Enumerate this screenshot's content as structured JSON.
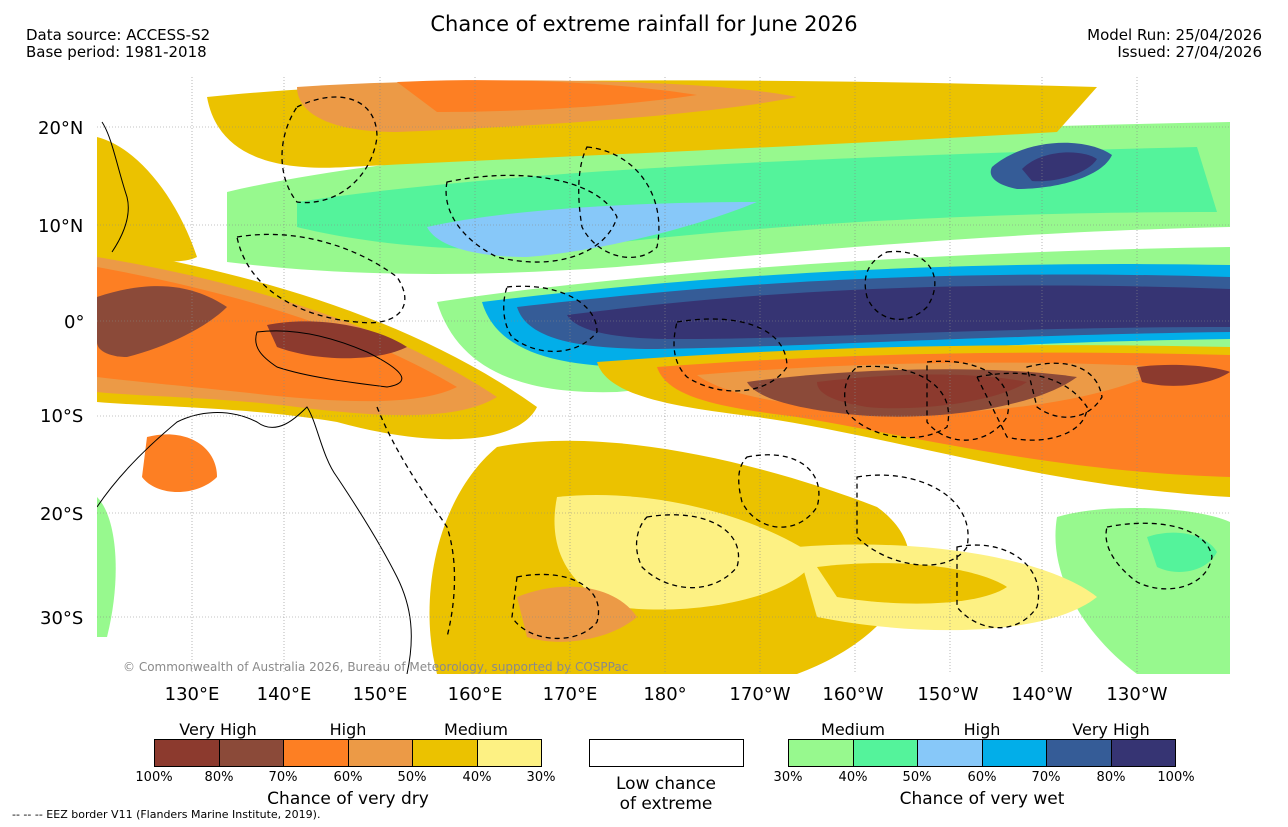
{
  "title": "Chance of extreme rainfall for June 2026",
  "header_left": {
    "data_source": "Data source: ACCESS-S2",
    "base_period": "Base period: 1981-2018"
  },
  "header_right": {
    "model_run": "Model Run: 25/04/2026",
    "issued": "Issued: 27/04/2026"
  },
  "map": {
    "lat_labels": [
      "20°N",
      "10°N",
      "0°",
      "10°S",
      "20°S",
      "30°S"
    ],
    "lon_labels": [
      "130°E",
      "140°E",
      "150°E",
      "160°E",
      "170°E",
      "180°",
      "170°W",
      "160°W",
      "150°W",
      "140°W",
      "130°W"
    ],
    "copyright": "© Commonwealth of Australia 2026, Bureau of Meteorology, supported by COSPPac"
  },
  "legend_dry": {
    "categories": [
      "Very High",
      "High",
      "Medium"
    ],
    "ticks": [
      "100%",
      "80%",
      "70%",
      "60%",
      "50%",
      "40%",
      "30%"
    ],
    "colors": [
      "#8c3a2e",
      "#8b4a39",
      "#fd7f23",
      "#ec9a46",
      "#ebc200",
      "#fdf183"
    ],
    "title": "Chance of very dry"
  },
  "legend_low": {
    "line1": "Low chance",
    "line2": "of extreme"
  },
  "legend_wet": {
    "categories": [
      "Medium",
      "High",
      "Very High"
    ],
    "ticks": [
      "30%",
      "40%",
      "50%",
      "60%",
      "70%",
      "80%",
      "100%"
    ],
    "colors": [
      "#97f98e",
      "#54f39b",
      "#87c8f9",
      "#02aee9",
      "#355c97",
      "#363473"
    ],
    "title": "Chance of very wet"
  },
  "footnote": "--  --  -- EEZ border V11 (Flanders Marine Institute, 2019)."
}
